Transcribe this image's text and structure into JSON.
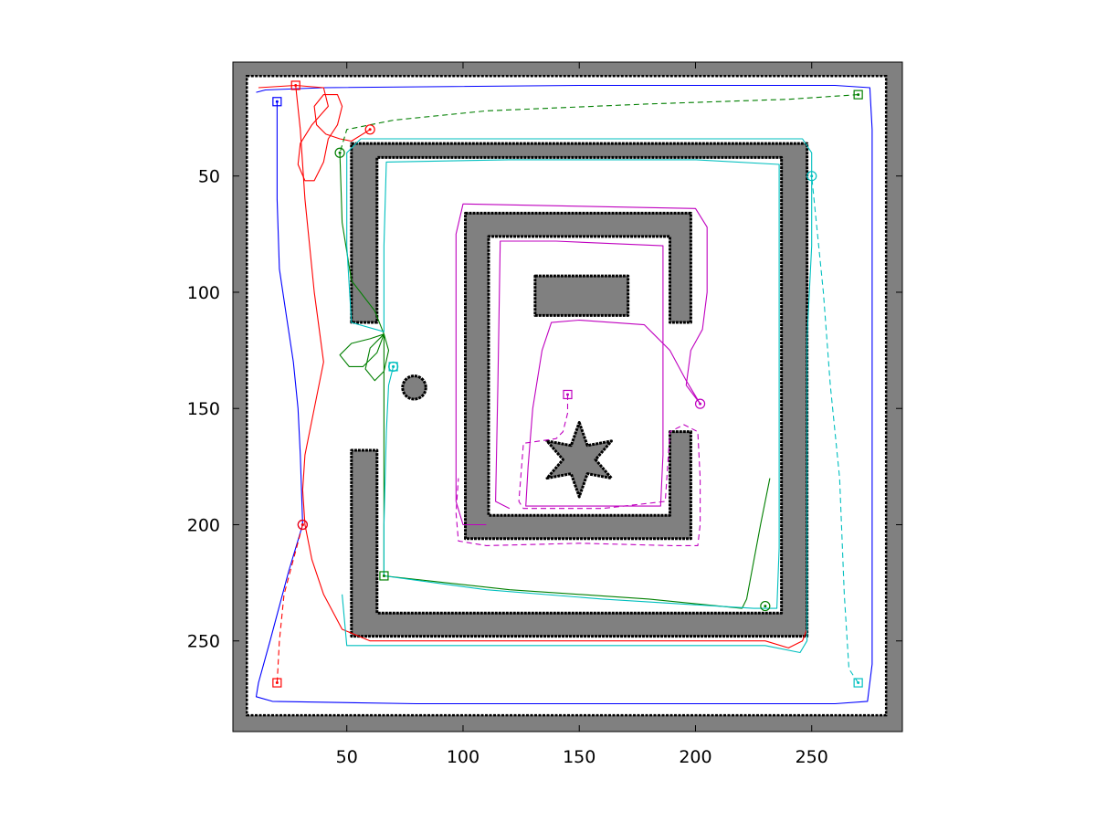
{
  "chart_data": {
    "type": "map",
    "title": "",
    "xlabel": "",
    "ylabel": "",
    "xlim": [
      1,
      289
    ],
    "ylim": [
      1,
      289
    ],
    "y_reversed": true,
    "xticks": [
      50,
      100,
      150,
      200,
      250
    ],
    "yticks": [
      50,
      100,
      150,
      200,
      250
    ],
    "xtick_labels": [
      "50",
      "100",
      "150",
      "200",
      "250"
    ],
    "ytick_labels": [
      "50",
      "100",
      "150",
      "200",
      "250"
    ],
    "grid": false,
    "legend": "none",
    "colors": {
      "background_obstacle": "#808080",
      "free_space": "#ffffff",
      "wall_border": "#000000",
      "blue": "#0000ff",
      "red": "#ff0000",
      "green": "#007f00",
      "cyan": "#00bfbf",
      "magenta": "#bf00bf"
    },
    "obstacles": [
      {
        "shape": "polygon",
        "points": [
          [
            52,
            36
          ],
          [
            248,
            36
          ],
          [
            248,
            248
          ],
          [
            52,
            248
          ],
          [
            52,
            168
          ],
          [
            63,
            168
          ],
          [
            63,
            238
          ],
          [
            237,
            238
          ],
          [
            237,
            42
          ],
          [
            63,
            42
          ],
          [
            63,
            113
          ],
          [
            52,
            113
          ]
        ]
      },
      {
        "shape": "polygon",
        "points": [
          [
            101,
            66
          ],
          [
            198,
            66
          ],
          [
            198,
            113
          ],
          [
            189,
            113
          ],
          [
            189,
            76
          ],
          [
            111,
            76
          ],
          [
            111,
            196
          ],
          [
            189,
            196
          ],
          [
            189,
            160
          ],
          [
            198,
            160
          ],
          [
            198,
            206
          ],
          [
            101,
            206
          ]
        ]
      },
      {
        "shape": "rect",
        "x0": 131,
        "y0": 93,
        "x1": 171,
        "y1": 110
      },
      {
        "shape": "circle",
        "cx": 79,
        "cy": 141,
        "r": 5
      },
      {
        "shape": "star",
        "cx": 150,
        "cy": 172,
        "r_outer": 16,
        "r_inner": 7,
        "points": 6
      }
    ],
    "series": [
      {
        "color": "blue",
        "style": "solid",
        "start": [
          20,
          18
        ],
        "goal": [
          31,
          200
        ],
        "points": [
          [
            20,
            18
          ],
          [
            20,
            30
          ],
          [
            20,
            60
          ],
          [
            21,
            90
          ],
          [
            24,
            110
          ],
          [
            27,
            130
          ],
          [
            29,
            150
          ],
          [
            30,
            170
          ],
          [
            31,
            200
          ]
        ]
      },
      {
        "color": "blue",
        "style": "solid",
        "points": [
          [
            31,
            200
          ],
          [
            25,
            220
          ],
          [
            17,
            250
          ],
          [
            12,
            268
          ],
          [
            11,
            274
          ],
          [
            18,
            276
          ],
          [
            80,
            277
          ],
          [
            200,
            277
          ],
          [
            260,
            277
          ],
          [
            274,
            276
          ],
          [
            276,
            260
          ],
          [
            276,
            150
          ],
          [
            276,
            30
          ],
          [
            275,
            12
          ],
          [
            260,
            11
          ],
          [
            150,
            11
          ],
          [
            40,
            12
          ],
          [
            15,
            13
          ],
          [
            11,
            14
          ]
        ]
      },
      {
        "color": "red",
        "style": "solid",
        "start": [
          28,
          11
        ],
        "goal": [
          60,
          30
        ],
        "points": [
          [
            12,
            12
          ],
          [
            28,
            11
          ],
          [
            40,
            12
          ],
          [
            42,
            20
          ],
          [
            35,
            28
          ],
          [
            30,
            36
          ],
          [
            29,
            45
          ],
          [
            32,
            52
          ],
          [
            36,
            52
          ],
          [
            40,
            44
          ],
          [
            42,
            34
          ],
          [
            46,
            28
          ],
          [
            48,
            20
          ],
          [
            46,
            15
          ],
          [
            40,
            15
          ],
          [
            36,
            20
          ],
          [
            37,
            28
          ],
          [
            41,
            32
          ],
          [
            47,
            34
          ],
          [
            52,
            35
          ],
          [
            60,
            30
          ]
        ]
      },
      {
        "color": "red",
        "style": "solid",
        "points": [
          [
            28,
            11
          ],
          [
            30,
            30
          ],
          [
            32,
            60
          ],
          [
            36,
            100
          ],
          [
            40,
            130
          ],
          [
            36,
            150
          ],
          [
            32,
            170
          ],
          [
            31,
            185
          ],
          [
            32,
            200
          ],
          [
            35,
            215
          ],
          [
            40,
            230
          ],
          [
            48,
            245
          ],
          [
            60,
            250
          ],
          [
            150,
            250
          ],
          [
            230,
            250
          ],
          [
            240,
            253
          ],
          [
            246,
            250
          ],
          [
            248,
            245
          ]
        ]
      },
      {
        "color": "red",
        "style": "dashed",
        "start": [
          20,
          268
        ],
        "goal": [
          31,
          200
        ],
        "points": [
          [
            20,
            268
          ],
          [
            21,
            250
          ],
          [
            23,
            230
          ],
          [
            27,
            215
          ],
          [
            31,
            200
          ]
        ]
      },
      {
        "color": "green",
        "style": "dashed",
        "start": [
          270,
          15
        ],
        "goal": [
          47,
          40
        ],
        "points": [
          [
            270,
            15
          ],
          [
            240,
            17
          ],
          [
            180,
            19
          ],
          [
            110,
            22
          ],
          [
            70,
            26
          ],
          [
            50,
            30
          ],
          [
            47,
            40
          ]
        ]
      },
      {
        "color": "green",
        "style": "solid",
        "start": [
          66,
          222
        ],
        "goal": [
          230,
          235
        ],
        "points": [
          [
            47,
            40
          ],
          [
            48,
            70
          ],
          [
            52,
            95
          ],
          [
            62,
            108
          ],
          [
            66,
            118
          ],
          [
            63,
            126
          ],
          [
            57,
            132
          ],
          [
            51,
            132
          ],
          [
            47,
            127
          ],
          [
            52,
            122
          ],
          [
            60,
            120
          ],
          [
            66,
            118
          ],
          [
            68,
            125
          ],
          [
            66,
            134
          ],
          [
            62,
            138
          ],
          [
            58,
            133
          ],
          [
            60,
            124
          ],
          [
            66,
            118
          ],
          [
            66,
            160
          ],
          [
            66,
            200
          ],
          [
            66,
            222
          ],
          [
            120,
            228
          ],
          [
            180,
            232
          ],
          [
            220,
            236
          ],
          [
            222,
            232
          ],
          [
            228,
            200
          ],
          [
            232,
            180
          ]
        ]
      },
      {
        "color": "cyan",
        "style": "solid",
        "start": [
          70,
          132
        ],
        "goal": [
          70,
          132
        ],
        "points": [
          [
            70,
            132
          ],
          [
            68,
            140
          ],
          [
            67,
            160
          ],
          [
            66,
            200
          ],
          [
            66,
            222
          ],
          [
            110,
            228
          ],
          [
            160,
            232
          ],
          [
            225,
            236
          ],
          [
            235,
            236
          ],
          [
            236,
            210
          ],
          [
            236,
            120
          ],
          [
            236,
            45
          ],
          [
            200,
            43
          ],
          [
            120,
            43
          ],
          [
            67,
            44
          ],
          [
            66,
            80
          ],
          [
            66,
            117
          ],
          [
            52,
            113
          ],
          [
            50,
            80
          ],
          [
            50,
            40
          ],
          [
            56,
            34
          ],
          [
            246,
            34
          ],
          [
            250,
            40
          ],
          [
            250,
            80
          ],
          [
            248,
            120
          ],
          [
            248,
            160
          ],
          [
            248,
            200
          ],
          [
            248,
            250
          ],
          [
            245,
            255
          ],
          [
            230,
            252
          ],
          [
            60,
            252
          ],
          [
            50,
            252
          ],
          [
            48,
            230
          ]
        ]
      },
      {
        "color": "cyan",
        "style": "dashed",
        "start": [
          270,
          268
        ],
        "goal": [
          250,
          50
        ],
        "points": [
          [
            270,
            268
          ],
          [
            266,
            262
          ],
          [
            264,
            230
          ],
          [
            262,
            180
          ],
          [
            258,
            140
          ],
          [
            255,
            100
          ],
          [
            252,
            70
          ],
          [
            250,
            50
          ]
        ]
      },
      {
        "color": "magenta",
        "style": "solid",
        "start": [
          145,
          144
        ],
        "goal": [
          202,
          148
        ],
        "points": [
          [
            202,
            148
          ],
          [
            196,
            138
          ],
          [
            189,
            125
          ],
          [
            182,
            118
          ],
          [
            178,
            114
          ],
          [
            150,
            112
          ],
          [
            138,
            113
          ],
          [
            134,
            125
          ],
          [
            130,
            150
          ],
          [
            128,
            175
          ],
          [
            127,
            192
          ],
          [
            150,
            192
          ],
          [
            185,
            192
          ],
          [
            186,
            170
          ],
          [
            186,
            80
          ],
          [
            140,
            78
          ],
          [
            116,
            78
          ],
          [
            115,
            140
          ],
          [
            114,
            190
          ],
          [
            120,
            193
          ]
        ]
      },
      {
        "color": "magenta",
        "style": "solid",
        "points": [
          [
            202,
            148
          ],
          [
            196,
            140
          ],
          [
            198,
            125
          ],
          [
            203,
            116
          ],
          [
            205,
            100
          ],
          [
            205,
            72
          ],
          [
            200,
            64
          ],
          [
            150,
            63
          ],
          [
            100,
            62
          ],
          [
            97,
            75
          ],
          [
            97,
            130
          ],
          [
            97,
            190
          ],
          [
            100,
            200
          ],
          [
            110,
            200
          ]
        ]
      },
      {
        "color": "magenta",
        "style": "dashed",
        "points": [
          [
            145,
            144
          ],
          [
            145,
            152
          ],
          [
            143,
            160
          ],
          [
            140,
            163
          ],
          [
            126,
            165
          ],
          [
            124,
            190
          ],
          [
            126,
            193
          ],
          [
            160,
            193
          ],
          [
            187,
            190
          ],
          [
            189,
            160
          ],
          [
            195,
            157
          ],
          [
            201,
            160
          ],
          [
            202,
            180
          ],
          [
            202,
            200
          ],
          [
            201,
            209
          ],
          [
            190,
            209
          ],
          [
            150,
            208
          ],
          [
            110,
            209
          ],
          [
            98,
            207
          ],
          [
            97,
            195
          ],
          [
            98,
            180
          ]
        ]
      }
    ]
  }
}
